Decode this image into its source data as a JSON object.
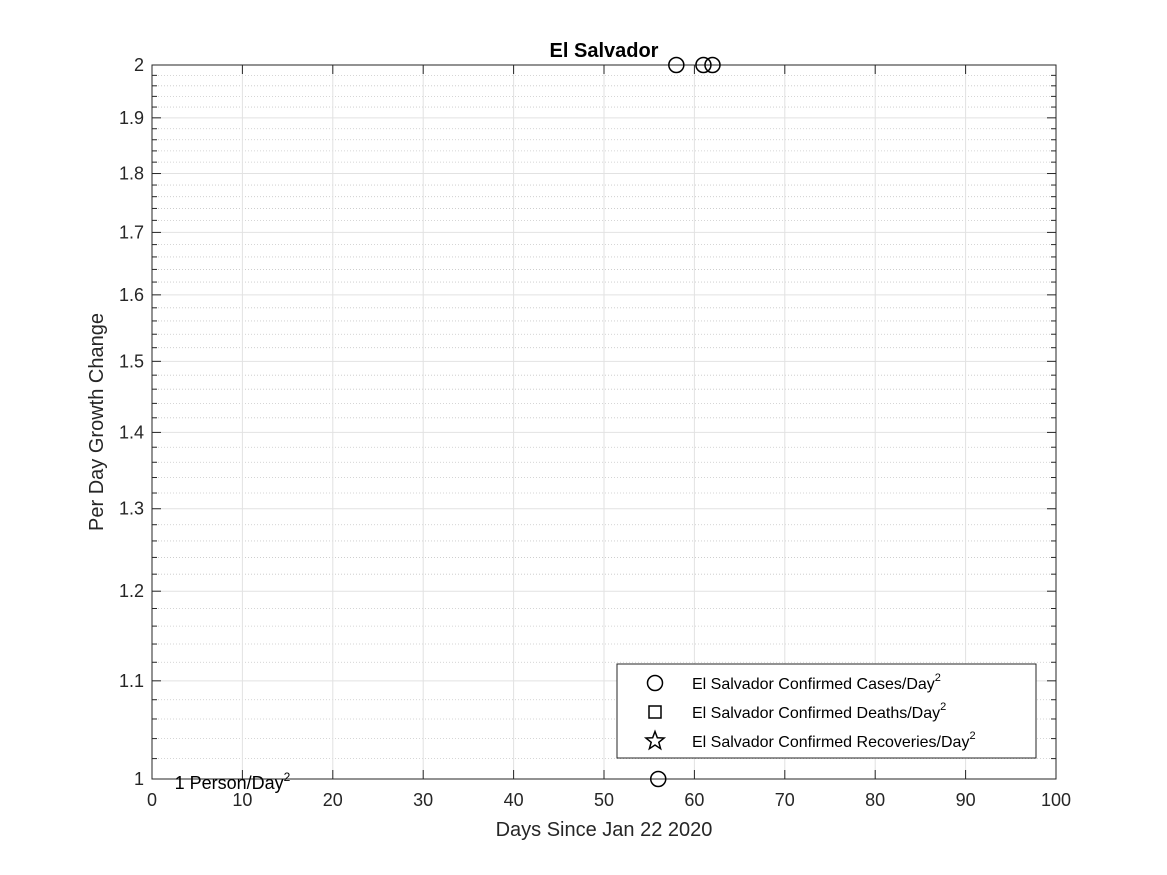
{
  "chart_data": {
    "type": "scatter",
    "title": "El Salvador",
    "xlabel": "Days Since Jan 22 2020",
    "ylabel": "Per Day Growth Change",
    "xlim": [
      0,
      100
    ],
    "ylim": [
      1,
      2
    ],
    "yscale": "log",
    "grid": true,
    "minor_grid": true,
    "x_ticks": [
      0,
      10,
      20,
      30,
      40,
      50,
      60,
      70,
      80,
      90,
      100
    ],
    "x_tick_labels": [
      "0",
      "10",
      "20",
      "30",
      "40",
      "50",
      "60",
      "70",
      "80",
      "90",
      "100"
    ],
    "y_ticks": [
      1,
      1.1,
      1.2,
      1.3,
      1.4,
      1.5,
      1.6,
      1.7,
      1.8,
      1.9,
      2
    ],
    "y_tick_labels": [
      "1",
      "1.1",
      "1.2",
      "1.3",
      "1.4",
      "1.5",
      "1.6",
      "1.7",
      "1.8",
      "1.9",
      "2"
    ],
    "series": [
      {
        "name": "El Salvador Confirmed Cases/Day",
        "name_sup": "2",
        "marker": "circle",
        "points": [
          {
            "x": 56,
            "y": 1
          },
          {
            "x": 58,
            "y": 2
          },
          {
            "x": 61,
            "y": 2
          },
          {
            "x": 62,
            "y": 2
          }
        ]
      },
      {
        "name": "El Salvador Confirmed Deaths/Day",
        "name_sup": "2",
        "marker": "square",
        "points": []
      },
      {
        "name": "El Salvador Confirmed Recoveries/Day",
        "name_sup": "2",
        "marker": "star",
        "points": []
      }
    ],
    "annotations": [
      {
        "text": "1 Person/Day",
        "sup": "2",
        "x": 2.5,
        "y": 1
      }
    ],
    "legend_position": "bottom-right"
  }
}
